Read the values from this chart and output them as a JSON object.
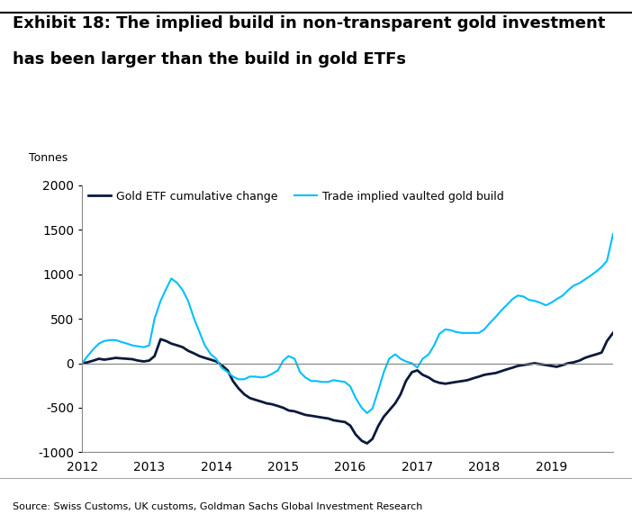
{
  "title_line1": "Exhibit 18: The implied build in non-transparent gold investment",
  "title_line2": "has been larger than the build in gold ETFs",
  "ylabel": "Tonnes",
  "source": "Source: Swiss Customs, UK customs, Goldman Sachs Global Investment Research",
  "ylim": [
    -1000,
    2000
  ],
  "yticks": [
    -1000,
    -500,
    0,
    500,
    1000,
    1500,
    2000
  ],
  "xlim": [
    2012.0,
    2019.92
  ],
  "xticks": [
    2012,
    2013,
    2014,
    2015,
    2016,
    2017,
    2018,
    2019
  ],
  "legend1_label": "Gold ETF cumulative change",
  "legend2_label": "Trade implied vaulted gold build",
  "etf_color": "#0a1a3a",
  "vault_color": "#00bfff",
  "background_color": "#f0f0f0",
  "etf_data": [
    [
      2012.0,
      0
    ],
    [
      2012.08,
      10
    ],
    [
      2012.17,
      30
    ],
    [
      2012.25,
      50
    ],
    [
      2012.33,
      40
    ],
    [
      2012.42,
      50
    ],
    [
      2012.5,
      60
    ],
    [
      2012.58,
      55
    ],
    [
      2012.67,
      50
    ],
    [
      2012.75,
      45
    ],
    [
      2012.83,
      30
    ],
    [
      2012.92,
      20
    ],
    [
      2013.0,
      30
    ],
    [
      2013.08,
      80
    ],
    [
      2013.17,
      270
    ],
    [
      2013.25,
      250
    ],
    [
      2013.33,
      220
    ],
    [
      2013.42,
      200
    ],
    [
      2013.5,
      180
    ],
    [
      2013.58,
      140
    ],
    [
      2013.67,
      110
    ],
    [
      2013.75,
      80
    ],
    [
      2013.83,
      60
    ],
    [
      2013.92,
      40
    ],
    [
      2014.0,
      20
    ],
    [
      2014.08,
      -20
    ],
    [
      2014.17,
      -80
    ],
    [
      2014.25,
      -200
    ],
    [
      2014.33,
      -280
    ],
    [
      2014.42,
      -350
    ],
    [
      2014.5,
      -390
    ],
    [
      2014.58,
      -410
    ],
    [
      2014.67,
      -430
    ],
    [
      2014.75,
      -450
    ],
    [
      2014.83,
      -460
    ],
    [
      2014.92,
      -480
    ],
    [
      2015.0,
      -500
    ],
    [
      2015.08,
      -530
    ],
    [
      2015.17,
      -540
    ],
    [
      2015.25,
      -560
    ],
    [
      2015.33,
      -580
    ],
    [
      2015.42,
      -590
    ],
    [
      2015.5,
      -600
    ],
    [
      2015.58,
      -610
    ],
    [
      2015.67,
      -620
    ],
    [
      2015.75,
      -640
    ],
    [
      2015.83,
      -650
    ],
    [
      2015.92,
      -660
    ],
    [
      2016.0,
      -700
    ],
    [
      2016.08,
      -800
    ],
    [
      2016.17,
      -870
    ],
    [
      2016.25,
      -900
    ],
    [
      2016.33,
      -850
    ],
    [
      2016.42,
      -700
    ],
    [
      2016.5,
      -600
    ],
    [
      2016.58,
      -530
    ],
    [
      2016.67,
      -450
    ],
    [
      2016.75,
      -350
    ],
    [
      2016.83,
      -200
    ],
    [
      2016.92,
      -100
    ],
    [
      2017.0,
      -80
    ],
    [
      2017.08,
      -130
    ],
    [
      2017.17,
      -160
    ],
    [
      2017.25,
      -200
    ],
    [
      2017.33,
      -220
    ],
    [
      2017.42,
      -230
    ],
    [
      2017.5,
      -220
    ],
    [
      2017.58,
      -210
    ],
    [
      2017.67,
      -200
    ],
    [
      2017.75,
      -190
    ],
    [
      2017.83,
      -170
    ],
    [
      2017.92,
      -150
    ],
    [
      2018.0,
      -130
    ],
    [
      2018.08,
      -120
    ],
    [
      2018.17,
      -110
    ],
    [
      2018.25,
      -90
    ],
    [
      2018.33,
      -70
    ],
    [
      2018.42,
      -50
    ],
    [
      2018.5,
      -30
    ],
    [
      2018.58,
      -20
    ],
    [
      2018.67,
      -10
    ],
    [
      2018.75,
      0
    ],
    [
      2018.83,
      -10
    ],
    [
      2018.92,
      -20
    ],
    [
      2019.0,
      -30
    ],
    [
      2019.08,
      -40
    ],
    [
      2019.17,
      -20
    ],
    [
      2019.25,
      0
    ],
    [
      2019.33,
      10
    ],
    [
      2019.42,
      30
    ],
    [
      2019.5,
      60
    ],
    [
      2019.58,
      80
    ],
    [
      2019.67,
      100
    ],
    [
      2019.75,
      120
    ],
    [
      2019.83,
      250
    ],
    [
      2019.92,
      340
    ]
  ],
  "vault_data": [
    [
      2012.0,
      0
    ],
    [
      2012.08,
      80
    ],
    [
      2012.17,
      160
    ],
    [
      2012.25,
      220
    ],
    [
      2012.33,
      250
    ],
    [
      2012.42,
      260
    ],
    [
      2012.5,
      260
    ],
    [
      2012.58,
      240
    ],
    [
      2012.67,
      220
    ],
    [
      2012.75,
      200
    ],
    [
      2012.83,
      190
    ],
    [
      2012.92,
      180
    ],
    [
      2013.0,
      200
    ],
    [
      2013.08,
      500
    ],
    [
      2013.17,
      700
    ],
    [
      2013.25,
      830
    ],
    [
      2013.33,
      950
    ],
    [
      2013.42,
      900
    ],
    [
      2013.5,
      820
    ],
    [
      2013.58,
      700
    ],
    [
      2013.67,
      500
    ],
    [
      2013.75,
      350
    ],
    [
      2013.83,
      200
    ],
    [
      2013.92,
      100
    ],
    [
      2014.0,
      50
    ],
    [
      2014.08,
      -50
    ],
    [
      2014.17,
      -100
    ],
    [
      2014.25,
      -150
    ],
    [
      2014.33,
      -180
    ],
    [
      2014.42,
      -180
    ],
    [
      2014.5,
      -150
    ],
    [
      2014.58,
      -150
    ],
    [
      2014.67,
      -160
    ],
    [
      2014.75,
      -150
    ],
    [
      2014.83,
      -120
    ],
    [
      2014.92,
      -80
    ],
    [
      2015.0,
      30
    ],
    [
      2015.08,
      80
    ],
    [
      2015.17,
      50
    ],
    [
      2015.25,
      -100
    ],
    [
      2015.33,
      -160
    ],
    [
      2015.42,
      -200
    ],
    [
      2015.5,
      -200
    ],
    [
      2015.58,
      -210
    ],
    [
      2015.67,
      -210
    ],
    [
      2015.75,
      -190
    ],
    [
      2015.83,
      -200
    ],
    [
      2015.92,
      -210
    ],
    [
      2016.0,
      -260
    ],
    [
      2016.08,
      -390
    ],
    [
      2016.17,
      -500
    ],
    [
      2016.25,
      -560
    ],
    [
      2016.33,
      -510
    ],
    [
      2016.42,
      -300
    ],
    [
      2016.5,
      -100
    ],
    [
      2016.58,
      50
    ],
    [
      2016.67,
      100
    ],
    [
      2016.75,
      50
    ],
    [
      2016.83,
      20
    ],
    [
      2016.92,
      0
    ],
    [
      2017.0,
      -50
    ],
    [
      2017.08,
      50
    ],
    [
      2017.17,
      100
    ],
    [
      2017.25,
      200
    ],
    [
      2017.33,
      330
    ],
    [
      2017.42,
      380
    ],
    [
      2017.5,
      370
    ],
    [
      2017.58,
      350
    ],
    [
      2017.67,
      340
    ],
    [
      2017.75,
      340
    ],
    [
      2017.83,
      340
    ],
    [
      2017.92,
      340
    ],
    [
      2018.0,
      380
    ],
    [
      2018.08,
      450
    ],
    [
      2018.17,
      520
    ],
    [
      2018.25,
      590
    ],
    [
      2018.33,
      650
    ],
    [
      2018.42,
      720
    ],
    [
      2018.5,
      760
    ],
    [
      2018.58,
      750
    ],
    [
      2018.67,
      710
    ],
    [
      2018.75,
      700
    ],
    [
      2018.83,
      680
    ],
    [
      2018.92,
      650
    ],
    [
      2019.0,
      680
    ],
    [
      2019.08,
      720
    ],
    [
      2019.17,
      760
    ],
    [
      2019.25,
      820
    ],
    [
      2019.33,
      870
    ],
    [
      2019.42,
      900
    ],
    [
      2019.5,
      940
    ],
    [
      2019.58,
      980
    ],
    [
      2019.67,
      1030
    ],
    [
      2019.75,
      1080
    ],
    [
      2019.83,
      1150
    ],
    [
      2019.92,
      1450
    ]
  ]
}
